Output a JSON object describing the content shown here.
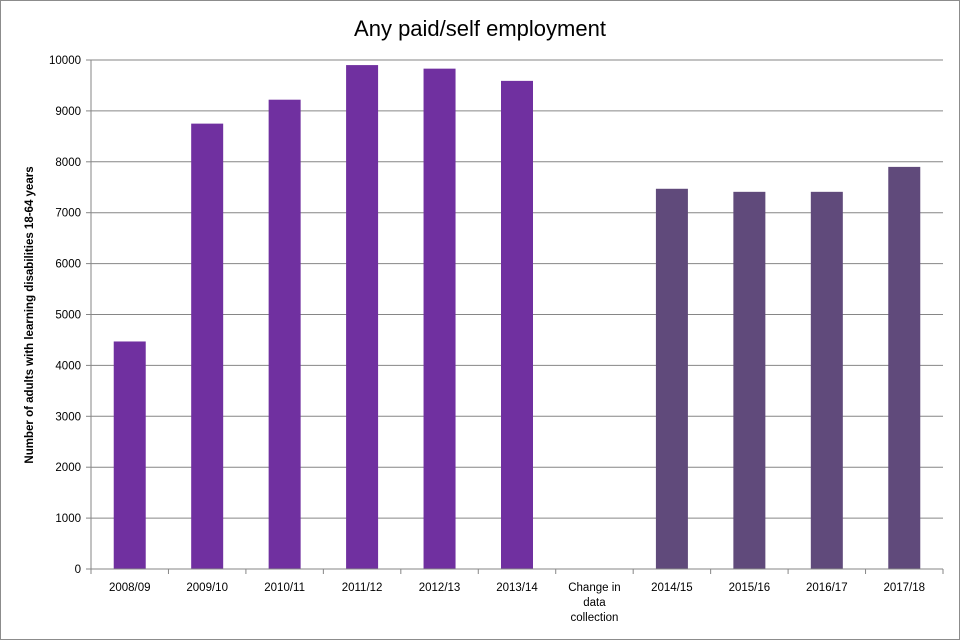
{
  "chart_data": {
    "type": "bar",
    "title": "Any paid/self employment",
    "xlabel": "",
    "ylabel": "Number of adults with learning disabilities 18-64 years",
    "ylim": [
      0,
      10000
    ],
    "yticks": [
      "0",
      "1000",
      "2000",
      "3000",
      "4000",
      "5000",
      "6000",
      "7000",
      "8000",
      "9000",
      "10000"
    ],
    "grid": true,
    "categories": [
      "2008/09",
      "2009/10",
      "2010/11",
      "2011/12",
      "2012/13",
      "2013/14",
      "Change in data collection",
      "2014/15",
      "2015/16",
      "2016/17",
      "2017/18"
    ],
    "category_lines": [
      [
        "2008/09"
      ],
      [
        "2009/10"
      ],
      [
        "2010/11"
      ],
      [
        "2011/12"
      ],
      [
        "2012/13"
      ],
      [
        "2013/14"
      ],
      [
        "Change in",
        "data",
        "collection"
      ],
      [
        "2014/15"
      ],
      [
        "2015/16"
      ],
      [
        "2016/17"
      ],
      [
        "2017/18"
      ]
    ],
    "values": [
      4470,
      8750,
      9220,
      9900,
      9830,
      9590,
      null,
      7470,
      7410,
      7410,
      7900
    ],
    "bar_colors": [
      "#7030a0",
      "#7030a0",
      "#7030a0",
      "#7030a0",
      "#7030a0",
      "#7030a0",
      "#ffffff",
      "#604a7b",
      "#604a7b",
      "#604a7b",
      "#604a7b"
    ],
    "grid_color": "#868686",
    "axis_color": "#868686"
  }
}
